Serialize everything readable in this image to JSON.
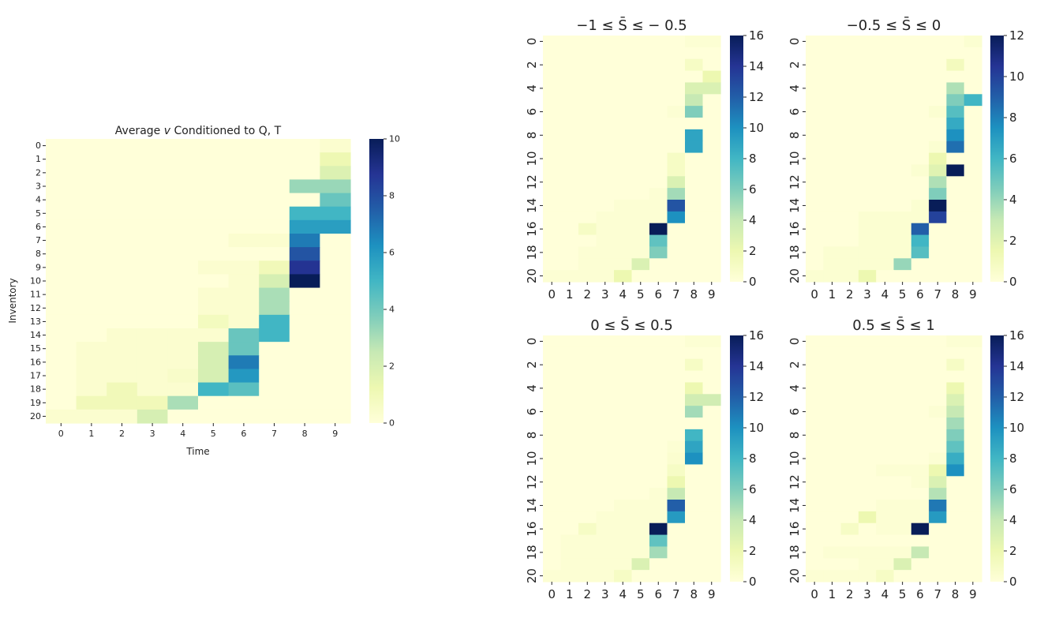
{
  "chart_data": [
    {
      "type": "heatmap",
      "title": "Average v Conditioned to Q, T",
      "title_parts": [
        "Average ",
        "v",
        " Conditioned to Q, T"
      ],
      "xlabel": "Time",
      "ylabel": "Inventory",
      "x_ticks": [
        "0",
        "1",
        "2",
        "3",
        "4",
        "5",
        "6",
        "7",
        "8",
        "9"
      ],
      "y_ticks": [
        "0",
        "1",
        "2",
        "3",
        "4",
        "5",
        "6",
        "7",
        "8",
        "9",
        "10",
        "11",
        "12",
        "13",
        "14",
        "15",
        "16",
        "17",
        "18",
        "19",
        "20"
      ],
      "colormap": "YlGnBu",
      "vmin": 0,
      "vmax": 10,
      "colorbar_ticks": [
        "0",
        "2",
        "4",
        "6",
        "8",
        "10"
      ],
      "values": [
        [
          0,
          0,
          0,
          0,
          0,
          0,
          0,
          0,
          0,
          0.3
        ],
        [
          0,
          0,
          0,
          0,
          0,
          0,
          0,
          0,
          0,
          1.2
        ],
        [
          0,
          0,
          0,
          0,
          0,
          0,
          0,
          0,
          0,
          1.8
        ],
        [
          0,
          0,
          0,
          0,
          0,
          0,
          0,
          0,
          3.3,
          3.3
        ],
        [
          0,
          0,
          0,
          0,
          0,
          0,
          0,
          0,
          0,
          4.2
        ],
        [
          0,
          0,
          0,
          0,
          0,
          0,
          0,
          0,
          5.0,
          5.0
        ],
        [
          0,
          0,
          0,
          0,
          0,
          0,
          0,
          0,
          5.8,
          5.8
        ],
        [
          0,
          0,
          0,
          0,
          0,
          0,
          0.3,
          0.3,
          6.8,
          0
        ],
        [
          0,
          0,
          0,
          0,
          0,
          0,
          0,
          0,
          7.8,
          0
        ],
        [
          0,
          0,
          0,
          0,
          0,
          0.3,
          0.3,
          1.0,
          8.8,
          0
        ],
        [
          0,
          0,
          0,
          0,
          0,
          0,
          0.3,
          2.0,
          10,
          0
        ],
        [
          0,
          0,
          0,
          0,
          0,
          0.3,
          0.3,
          3.0,
          0,
          0
        ],
        [
          0,
          0,
          0,
          0,
          0,
          0.3,
          0.3,
          3.0,
          0,
          0
        ],
        [
          0,
          0,
          0,
          0,
          0,
          0.8,
          0.3,
          5.0,
          0,
          0
        ],
        [
          0,
          0,
          0.3,
          0.3,
          0.3,
          0.3,
          4.2,
          5.0,
          0,
          0
        ],
        [
          0,
          0.3,
          0.3,
          0.3,
          0.3,
          2.0,
          4.2,
          0,
          0,
          0
        ],
        [
          0,
          0.3,
          0.3,
          0.3,
          0.3,
          2.0,
          6.8,
          0,
          0,
          0
        ],
        [
          0,
          0.3,
          0.3,
          0.3,
          0.5,
          2.0,
          6.0,
          0,
          0,
          0
        ],
        [
          0,
          0.3,
          1.0,
          0.3,
          0.3,
          5.0,
          4.5,
          0,
          0,
          0
        ],
        [
          0,
          1.0,
          1.0,
          1.0,
          3.0,
          0,
          0,
          0,
          0,
          0
        ],
        [
          0.3,
          0.3,
          0.3,
          2.0,
          0,
          0,
          0,
          0,
          0,
          0
        ]
      ]
    },
    {
      "type": "heatmap",
      "title": "−1 ≤ S̄ ≤ − 0.5",
      "x_ticks": [
        "0",
        "1",
        "2",
        "3",
        "4",
        "5",
        "6",
        "7",
        "8",
        "9"
      ],
      "y_ticks": [
        "0",
        "2",
        "4",
        "6",
        "8",
        "10",
        "12",
        "14",
        "16",
        "18",
        "20"
      ],
      "colormap": "YlGnBu",
      "vmin": 0,
      "vmax": 16,
      "colorbar_ticks": [
        "0",
        "2",
        "4",
        "6",
        "8",
        "10",
        "12",
        "14",
        "16"
      ],
      "values": [
        [
          0,
          0,
          0,
          0,
          0,
          0,
          0,
          0,
          0.3,
          0.3
        ],
        [
          0,
          0,
          0,
          0,
          0,
          0,
          0,
          0,
          0,
          0
        ],
        [
          0,
          0,
          0,
          0,
          0,
          0,
          0,
          0,
          1.0,
          0
        ],
        [
          0,
          0,
          0,
          0,
          0,
          0,
          0,
          0,
          0,
          2.0
        ],
        [
          0,
          0,
          0,
          0,
          0,
          0,
          0,
          0,
          3.0,
          3.0
        ],
        [
          0,
          0,
          0,
          0,
          0,
          0,
          0,
          0,
          4.0,
          0
        ],
        [
          0,
          0,
          0,
          0,
          0,
          0,
          0,
          0.3,
          6.0,
          0
        ],
        [
          0,
          0,
          0,
          0,
          0,
          0,
          0,
          0,
          0,
          0
        ],
        [
          0,
          0,
          0,
          0,
          0,
          0,
          0,
          0,
          9.0,
          0
        ],
        [
          0,
          0,
          0,
          0,
          0,
          0,
          0,
          0,
          9.0,
          0
        ],
        [
          0,
          0,
          0,
          0,
          0,
          0,
          0,
          1.0,
          0,
          0
        ],
        [
          0,
          0,
          0,
          0,
          0,
          0,
          0,
          1.0,
          0,
          0
        ],
        [
          0,
          0,
          0,
          0,
          0,
          0,
          0,
          3.0,
          0,
          0
        ],
        [
          0,
          0,
          0,
          0,
          0,
          0,
          0.3,
          5.0,
          0,
          0
        ],
        [
          0,
          0,
          0,
          0,
          0.3,
          0.3,
          0.3,
          12.5,
          0,
          0
        ],
        [
          0,
          0,
          0,
          0.3,
          0.3,
          0.3,
          0.3,
          10.0,
          0,
          0
        ],
        [
          0,
          0,
          1.0,
          0.3,
          0.3,
          0.3,
          16,
          0,
          0,
          0
        ],
        [
          0,
          0,
          0,
          0.3,
          0.3,
          0.3,
          7.0,
          0,
          0,
          0
        ],
        [
          0,
          0,
          0.3,
          0.3,
          0.3,
          0.3,
          6.0,
          0,
          0,
          0
        ],
        [
          0,
          0,
          0.3,
          0.3,
          0.3,
          3.0,
          0,
          0,
          0,
          0
        ],
        [
          0.3,
          0.3,
          0.3,
          0.3,
          2.0,
          0,
          0,
          0,
          0,
          0
        ]
      ]
    },
    {
      "type": "heatmap",
      "title": "−0.5 ≤ S̄ ≤ 0",
      "x_ticks": [
        "0",
        "1",
        "2",
        "3",
        "4",
        "5",
        "6",
        "7",
        "8",
        "9"
      ],
      "y_ticks": [
        "0",
        "2",
        "4",
        "6",
        "8",
        "10",
        "12",
        "14",
        "16",
        "18",
        "20"
      ],
      "colormap": "YlGnBu",
      "vmin": 0,
      "vmax": 12,
      "colorbar_ticks": [
        "0",
        "2",
        "4",
        "6",
        "8",
        "10",
        "12"
      ],
      "values": [
        [
          0,
          0,
          0,
          0,
          0,
          0,
          0,
          0,
          0,
          0.3
        ],
        [
          0,
          0,
          0,
          0,
          0,
          0,
          0,
          0,
          0,
          0
        ],
        [
          0,
          0,
          0,
          0,
          0,
          0,
          0,
          0,
          1.0,
          0
        ],
        [
          0,
          0,
          0,
          0,
          0,
          0,
          0,
          0,
          0,
          0
        ],
        [
          0,
          0,
          0,
          0,
          0,
          0,
          0,
          0,
          3.5,
          0
        ],
        [
          0,
          0,
          0,
          0,
          0,
          0,
          0,
          0,
          4.5,
          6.0
        ],
        [
          0,
          0,
          0,
          0,
          0,
          0,
          0,
          0.3,
          5.5,
          0
        ],
        [
          0,
          0,
          0,
          0,
          0,
          0,
          0,
          0,
          6.5,
          0
        ],
        [
          0,
          0,
          0,
          0,
          0,
          0,
          0,
          0,
          7.5,
          0
        ],
        [
          0,
          0,
          0,
          0,
          0,
          0,
          0,
          0.3,
          8.5,
          0
        ],
        [
          0,
          0,
          0,
          0,
          0,
          0,
          0,
          1.5,
          0,
          0
        ],
        [
          0,
          0,
          0,
          0,
          0,
          0,
          0.3,
          2.0,
          12,
          0
        ],
        [
          0,
          0,
          0,
          0,
          0,
          0,
          0,
          3.5,
          0,
          0
        ],
        [
          0,
          0,
          0,
          0,
          0,
          0,
          0,
          4.5,
          0,
          0
        ],
        [
          0,
          0,
          0,
          0,
          0,
          0,
          0.3,
          12,
          0,
          0
        ],
        [
          0,
          0,
          0,
          0.3,
          0.3,
          0.3,
          0.3,
          10,
          0,
          0
        ],
        [
          0,
          0,
          0,
          0.3,
          0.3,
          0.3,
          9.0,
          0,
          0,
          0
        ],
        [
          0,
          0,
          0,
          0.3,
          0.3,
          0.3,
          6.0,
          0,
          0,
          0
        ],
        [
          0,
          0.3,
          0.3,
          0.3,
          0.3,
          0.3,
          5.5,
          0,
          0,
          0
        ],
        [
          0,
          0.3,
          0.3,
          0.3,
          0.3,
          4.0,
          0,
          0,
          0,
          0
        ],
        [
          0.3,
          0.3,
          0.3,
          1.5,
          0,
          0,
          0,
          0,
          0,
          0
        ]
      ]
    },
    {
      "type": "heatmap",
      "title": "0 ≤ S̄ ≤ 0.5",
      "x_ticks": [
        "0",
        "1",
        "2",
        "3",
        "4",
        "5",
        "6",
        "7",
        "8",
        "9"
      ],
      "y_ticks": [
        "0",
        "2",
        "4",
        "6",
        "8",
        "10",
        "12",
        "14",
        "16",
        "18",
        "20"
      ],
      "colormap": "YlGnBu",
      "vmin": 0,
      "vmax": 16,
      "colorbar_ticks": [
        "0",
        "2",
        "4",
        "6",
        "8",
        "10",
        "12",
        "14",
        "16"
      ],
      "values": [
        [
          0,
          0,
          0,
          0,
          0,
          0,
          0,
          0,
          0.3,
          0.3
        ],
        [
          0,
          0,
          0,
          0,
          0,
          0,
          0,
          0,
          0,
          0
        ],
        [
          0,
          0,
          0,
          0,
          0,
          0,
          0,
          0,
          1.0,
          0
        ],
        [
          0,
          0,
          0,
          0,
          0,
          0,
          0,
          0,
          0,
          0
        ],
        [
          0,
          0,
          0,
          0,
          0,
          0,
          0,
          0,
          2.0,
          0
        ],
        [
          0,
          0,
          0,
          0,
          0,
          0,
          0,
          0,
          3.5,
          3.5
        ],
        [
          0,
          0,
          0,
          0,
          0,
          0,
          0,
          0,
          5.0,
          0
        ],
        [
          0,
          0,
          0,
          0,
          0,
          0,
          0,
          0,
          0,
          0
        ],
        [
          0,
          0,
          0,
          0,
          0,
          0,
          0,
          0,
          8.0,
          0
        ],
        [
          0,
          0,
          0,
          0,
          0,
          0,
          0,
          0.3,
          9.0,
          0
        ],
        [
          0,
          0,
          0,
          0,
          0,
          0,
          0,
          0.5,
          10,
          0
        ],
        [
          0,
          0,
          0,
          0,
          0,
          0,
          0,
          1.0,
          0,
          0
        ],
        [
          0,
          0,
          0,
          0,
          0,
          0,
          0,
          2.0,
          0,
          0
        ],
        [
          0,
          0,
          0,
          0,
          0,
          0,
          0.3,
          4.0,
          0,
          0
        ],
        [
          0,
          0,
          0,
          0,
          0.3,
          0.3,
          0.3,
          12,
          0,
          0
        ],
        [
          0,
          0,
          0,
          0.3,
          0.3,
          0.3,
          0.3,
          9.5,
          0,
          0
        ],
        [
          0,
          0,
          1.0,
          0.3,
          0.3,
          0.3,
          16,
          0,
          0,
          0
        ],
        [
          0,
          0.3,
          0.3,
          0.3,
          0.3,
          0.3,
          7.0,
          0,
          0,
          0
        ],
        [
          0,
          0.3,
          0.3,
          0.3,
          0.3,
          0.3,
          5.0,
          0,
          0,
          0
        ],
        [
          0,
          0.3,
          0.3,
          0.3,
          0.3,
          3.0,
          0,
          0,
          0,
          0
        ],
        [
          0.3,
          0.3,
          0.3,
          0.3,
          1.0,
          0,
          0,
          0,
          0,
          0
        ]
      ]
    },
    {
      "type": "heatmap",
      "title": "0.5 ≤ S̄ ≤ 1",
      "x_ticks": [
        "0",
        "1",
        "2",
        "3",
        "4",
        "5",
        "6",
        "7",
        "8",
        "9"
      ],
      "y_ticks": [
        "0",
        "2",
        "4",
        "6",
        "8",
        "10",
        "12",
        "14",
        "16",
        "18",
        "20"
      ],
      "colormap": "YlGnBu",
      "vmin": 0,
      "vmax": 16,
      "colorbar_ticks": [
        "0",
        "2",
        "4",
        "6",
        "8",
        "10",
        "12",
        "14",
        "16"
      ],
      "values": [
        [
          0,
          0,
          0,
          0,
          0,
          0,
          0,
          0,
          0.3,
          0.3
        ],
        [
          0,
          0,
          0,
          0,
          0,
          0,
          0,
          0,
          0,
          0
        ],
        [
          0,
          0,
          0,
          0,
          0,
          0,
          0,
          0,
          1.0,
          0
        ],
        [
          0,
          0,
          0,
          0,
          0,
          0,
          0,
          0,
          0,
          0
        ],
        [
          0,
          0,
          0,
          0,
          0,
          0,
          0,
          0,
          2.0,
          0
        ],
        [
          0,
          0,
          0,
          0,
          0,
          0,
          0,
          0,
          3.0,
          0
        ],
        [
          0,
          0,
          0,
          0,
          0,
          0,
          0,
          0.3,
          4.0,
          0
        ],
        [
          0,
          0,
          0,
          0,
          0,
          0,
          0,
          0,
          5.0,
          0
        ],
        [
          0,
          0,
          0,
          0,
          0,
          0,
          0,
          0,
          6.0,
          0
        ],
        [
          0,
          0,
          0,
          0,
          0,
          0,
          0,
          0,
          7.0,
          0
        ],
        [
          0,
          0,
          0,
          0,
          0,
          0,
          0,
          0.3,
          8.5,
          0
        ],
        [
          0,
          0,
          0,
          0,
          0.3,
          0.3,
          0.3,
          2.0,
          10,
          0
        ],
        [
          0,
          0,
          0,
          0,
          0,
          0,
          0.3,
          3.0,
          0,
          0
        ],
        [
          0,
          0,
          0,
          0,
          0,
          0,
          0,
          4.5,
          0,
          0
        ],
        [
          0,
          0,
          0,
          0,
          0.3,
          0.3,
          0.3,
          11,
          0,
          0
        ],
        [
          0,
          0,
          0,
          2.0,
          0.3,
          0.3,
          0.3,
          9.5,
          0,
          0
        ],
        [
          0,
          0,
          1.0,
          0,
          0.3,
          0.3,
          16,
          0,
          0,
          0
        ],
        [
          0,
          0,
          0,
          0,
          0,
          0,
          0,
          0,
          0,
          0
        ],
        [
          0,
          0.3,
          0.3,
          0.3,
          0.3,
          0.3,
          4.0,
          0,
          0,
          0
        ],
        [
          0,
          0,
          0,
          0.3,
          0.3,
          3.0,
          0,
          0,
          0,
          0
        ],
        [
          0.3,
          0.3,
          0.3,
          0.3,
          1.0,
          0,
          0,
          0,
          0,
          0
        ]
      ]
    }
  ]
}
